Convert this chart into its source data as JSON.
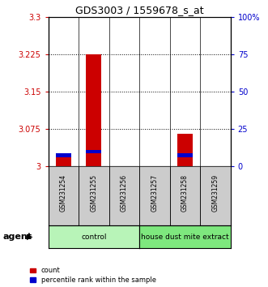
{
  "title": "GDS3003 / 1559678_s_at",
  "samples": [
    "GSM231254",
    "GSM231255",
    "GSM231256",
    "GSM231257",
    "GSM231258",
    "GSM231259"
  ],
  "count_values": [
    3.02,
    3.225,
    3.0,
    3.0,
    3.065,
    3.0
  ],
  "percentile_values": [
    7.5,
    10,
    0,
    0,
    7.5,
    0
  ],
  "ylim_left": [
    3.0,
    3.3
  ],
  "ylim_right": [
    0,
    100
  ],
  "yticks_left": [
    3.0,
    3.075,
    3.15,
    3.225,
    3.3
  ],
  "yticks_right": [
    0,
    25,
    50,
    75,
    100
  ],
  "ytick_labels_left": [
    "3",
    "3.075",
    "3.15",
    "3.225",
    "3.3"
  ],
  "ytick_labels_right": [
    "0",
    "25",
    "50",
    "75",
    "100%"
  ],
  "hlines": [
    3.075,
    3.15,
    3.225
  ],
  "bar_width": 0.5,
  "count_color": "#cc0000",
  "percentile_color": "#0000cc",
  "left_tick_color": "#cc0000",
  "right_tick_color": "#0000cc",
  "sample_box_color": "#cccccc",
  "group_colors": [
    "#b8f4b8",
    "#7ee87e"
  ],
  "group_labels": [
    "control",
    "house dust mite extract"
  ],
  "group_ranges": [
    [
      0,
      2
    ],
    [
      3,
      5
    ]
  ],
  "agent_label": "agent"
}
